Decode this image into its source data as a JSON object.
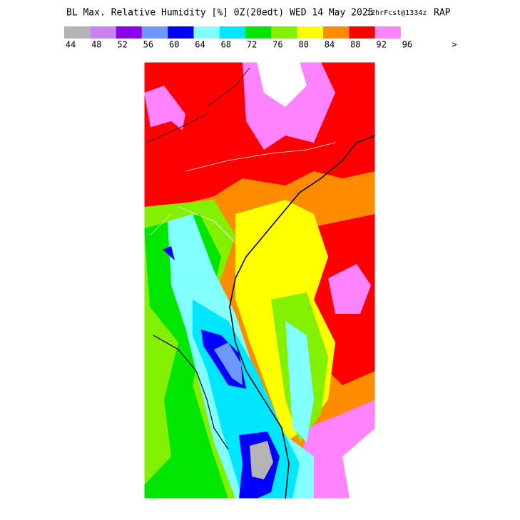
{
  "header": {
    "title": "BL Max. Relative Humidity [%] 0Z(20edt) WED 14 May 2025",
    "forecast": "12hrFcst@1334z",
    "model": "RAP"
  },
  "legend": {
    "items": [
      {
        "label": "44",
        "color": "#b4b4b4"
      },
      {
        "label": "48",
        "color": "#c882f0"
      },
      {
        "label": "52",
        "color": "#8c00f0"
      },
      {
        "label": "56",
        "color": "#6e96ff"
      },
      {
        "label": "60",
        "color": "#0000ff"
      },
      {
        "label": "64",
        "color": "#82ffff"
      },
      {
        "label": "68",
        "color": "#00e6ff"
      },
      {
        "label": "72",
        "color": "#00e600"
      },
      {
        "label": "76",
        "color": "#82f000"
      },
      {
        "label": "80",
        "color": "#ffff00"
      },
      {
        "label": "84",
        "color": "#ff8c00"
      },
      {
        "label": "88",
        "color": "#ff0000"
      },
      {
        "label": "92",
        "color": "#ff82ff"
      }
    ],
    "last_label": "96",
    "overflow_label": ">"
  }
}
